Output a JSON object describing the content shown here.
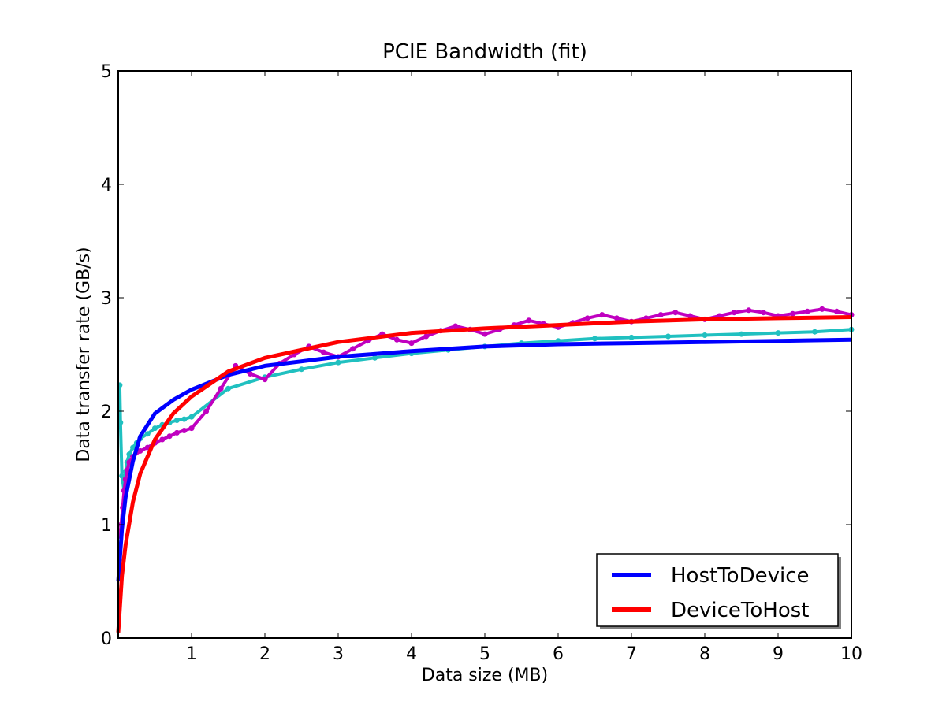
{
  "chart_data": {
    "type": "line",
    "title": "PCIE Bandwidth (fit)",
    "xlabel": "Data size (MB)",
    "ylabel": "Data transfer rate (GB/s)",
    "xlim": [
      0,
      10
    ],
    "ylim": [
      0,
      5
    ],
    "xticks": [
      "1",
      "2",
      "3",
      "4",
      "5",
      "6",
      "7",
      "8",
      "9",
      "10"
    ],
    "yticks": [
      "0",
      "1",
      "2",
      "3",
      "4",
      "5"
    ],
    "grid": false,
    "legend_position": "lower-right",
    "series": [
      {
        "name": "HostToDevice",
        "kind": "fit-line",
        "color": "#0000ff",
        "x": [
          0,
          0.05,
          0.1,
          0.2,
          0.3,
          0.5,
          0.75,
          1,
          1.5,
          2,
          3,
          4,
          5,
          6,
          7,
          8,
          9,
          10
        ],
        "y": [
          0.5,
          0.96,
          1.24,
          1.56,
          1.78,
          1.98,
          2.1,
          2.19,
          2.32,
          2.4,
          2.48,
          2.53,
          2.57,
          2.59,
          2.6,
          2.61,
          2.62,
          2.63
        ]
      },
      {
        "name": "DeviceToHost",
        "kind": "fit-line",
        "color": "#ff0000",
        "x": [
          0,
          0.05,
          0.1,
          0.2,
          0.3,
          0.5,
          0.75,
          1,
          1.5,
          2,
          3,
          4,
          5,
          6,
          7,
          8,
          9,
          10
        ],
        "y": [
          0.05,
          0.55,
          0.82,
          1.2,
          1.45,
          1.75,
          1.98,
          2.13,
          2.35,
          2.47,
          2.61,
          2.69,
          2.73,
          2.76,
          2.79,
          2.81,
          2.82,
          2.83
        ]
      },
      {
        "kind": "measured-points",
        "color": "#20c0c0",
        "x": [
          0.02,
          0.03,
          0.05,
          0.08,
          0.1,
          0.12,
          0.15,
          0.2,
          0.25,
          0.3,
          0.4,
          0.5,
          0.6,
          0.7,
          0.8,
          0.9,
          1,
          1.5,
          2,
          2.5,
          3,
          3.5,
          4,
          4.5,
          5,
          5.5,
          6,
          6.5,
          7,
          7.5,
          8,
          8.5,
          9,
          9.5,
          10
        ],
        "y": [
          2.23,
          1.9,
          1.43,
          1.3,
          1.47,
          1.55,
          1.62,
          1.68,
          1.72,
          1.76,
          1.8,
          1.85,
          1.88,
          1.9,
          1.92,
          1.93,
          1.95,
          2.2,
          2.3,
          2.37,
          2.43,
          2.47,
          2.51,
          2.54,
          2.57,
          2.6,
          2.62,
          2.64,
          2.65,
          2.66,
          2.67,
          2.68,
          2.69,
          2.7,
          2.72
        ]
      },
      {
        "kind": "measured-points",
        "color": "#c000c0",
        "x": [
          0.02,
          0.04,
          0.06,
          0.08,
          0.1,
          0.12,
          0.15,
          0.2,
          0.3,
          0.4,
          0.5,
          0.6,
          0.7,
          0.8,
          0.9,
          1,
          1.2,
          1.4,
          1.6,
          1.8,
          2,
          2.2,
          2.4,
          2.6,
          2.8,
          3,
          3.2,
          3.4,
          3.6,
          3.8,
          4,
          4.2,
          4.4,
          4.6,
          4.8,
          5,
          5.2,
          5.4,
          5.6,
          5.8,
          6,
          6.2,
          6.4,
          6.6,
          6.8,
          7,
          7.2,
          7.4,
          7.6,
          7.8,
          8,
          8.2,
          8.4,
          8.6,
          8.8,
          9,
          9.2,
          9.4,
          9.6,
          9.8,
          10
        ],
        "y": [
          0.9,
          1.0,
          1.15,
          1.3,
          1.4,
          1.48,
          1.55,
          1.6,
          1.65,
          1.68,
          1.72,
          1.75,
          1.78,
          1.81,
          1.83,
          1.85,
          2.0,
          2.2,
          2.4,
          2.33,
          2.28,
          2.42,
          2.5,
          2.57,
          2.52,
          2.48,
          2.55,
          2.62,
          2.68,
          2.63,
          2.6,
          2.66,
          2.71,
          2.75,
          2.72,
          2.68,
          2.72,
          2.76,
          2.8,
          2.77,
          2.74,
          2.78,
          2.82,
          2.85,
          2.82,
          2.79,
          2.82,
          2.85,
          2.87,
          2.84,
          2.81,
          2.84,
          2.87,
          2.89,
          2.87,
          2.84,
          2.86,
          2.88,
          2.9,
          2.88,
          2.85
        ]
      }
    ]
  }
}
